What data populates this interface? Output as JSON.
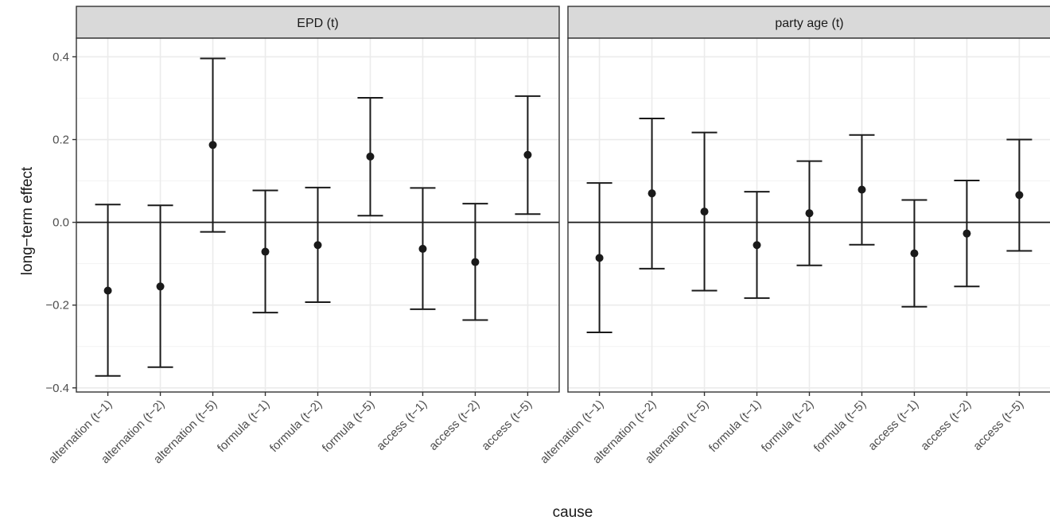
{
  "chart_data": {
    "type": "errorbar",
    "xlabel": "cause",
    "ylabel": "long−term effect",
    "ylim": [
      -0.41,
      0.445
    ],
    "y_ticks": [
      -0.4,
      -0.2,
      0.0,
      0.2,
      0.4
    ],
    "y_tick_labels": [
      "−0.4",
      "−0.2",
      "0.0",
      "0.2",
      "0.4"
    ],
    "reference_line": 0,
    "grid": true,
    "categories": [
      "alternation (t−1)",
      "alternation (t−2)",
      "alternation (t−5)",
      "formula (t−1)",
      "formula (t−2)",
      "formula (t−5)",
      "access (t−1)",
      "access (t−2)",
      "access (t−5)"
    ],
    "panels": [
      {
        "title": "EPD (t)",
        "estimate": [
          -0.165,
          -0.155,
          0.187,
          -0.071,
          -0.055,
          0.159,
          -0.064,
          -0.096,
          0.163
        ],
        "lower": [
          -0.371,
          -0.35,
          -0.023,
          -0.218,
          -0.193,
          0.016,
          -0.21,
          -0.236,
          0.02
        ],
        "upper": [
          0.043,
          0.041,
          0.396,
          0.077,
          0.084,
          0.301,
          0.083,
          0.045,
          0.305
        ]
      },
      {
        "title": "party age (t)",
        "estimate": [
          -0.086,
          0.07,
          0.026,
          -0.055,
          0.022,
          0.079,
          -0.075,
          -0.027,
          0.066
        ],
        "lower": [
          -0.266,
          -0.112,
          -0.165,
          -0.183,
          -0.104,
          -0.054,
          -0.204,
          -0.155,
          -0.069
        ],
        "upper": [
          0.095,
          0.251,
          0.217,
          0.074,
          0.148,
          0.211,
          0.054,
          0.101,
          0.2
        ]
      }
    ]
  }
}
